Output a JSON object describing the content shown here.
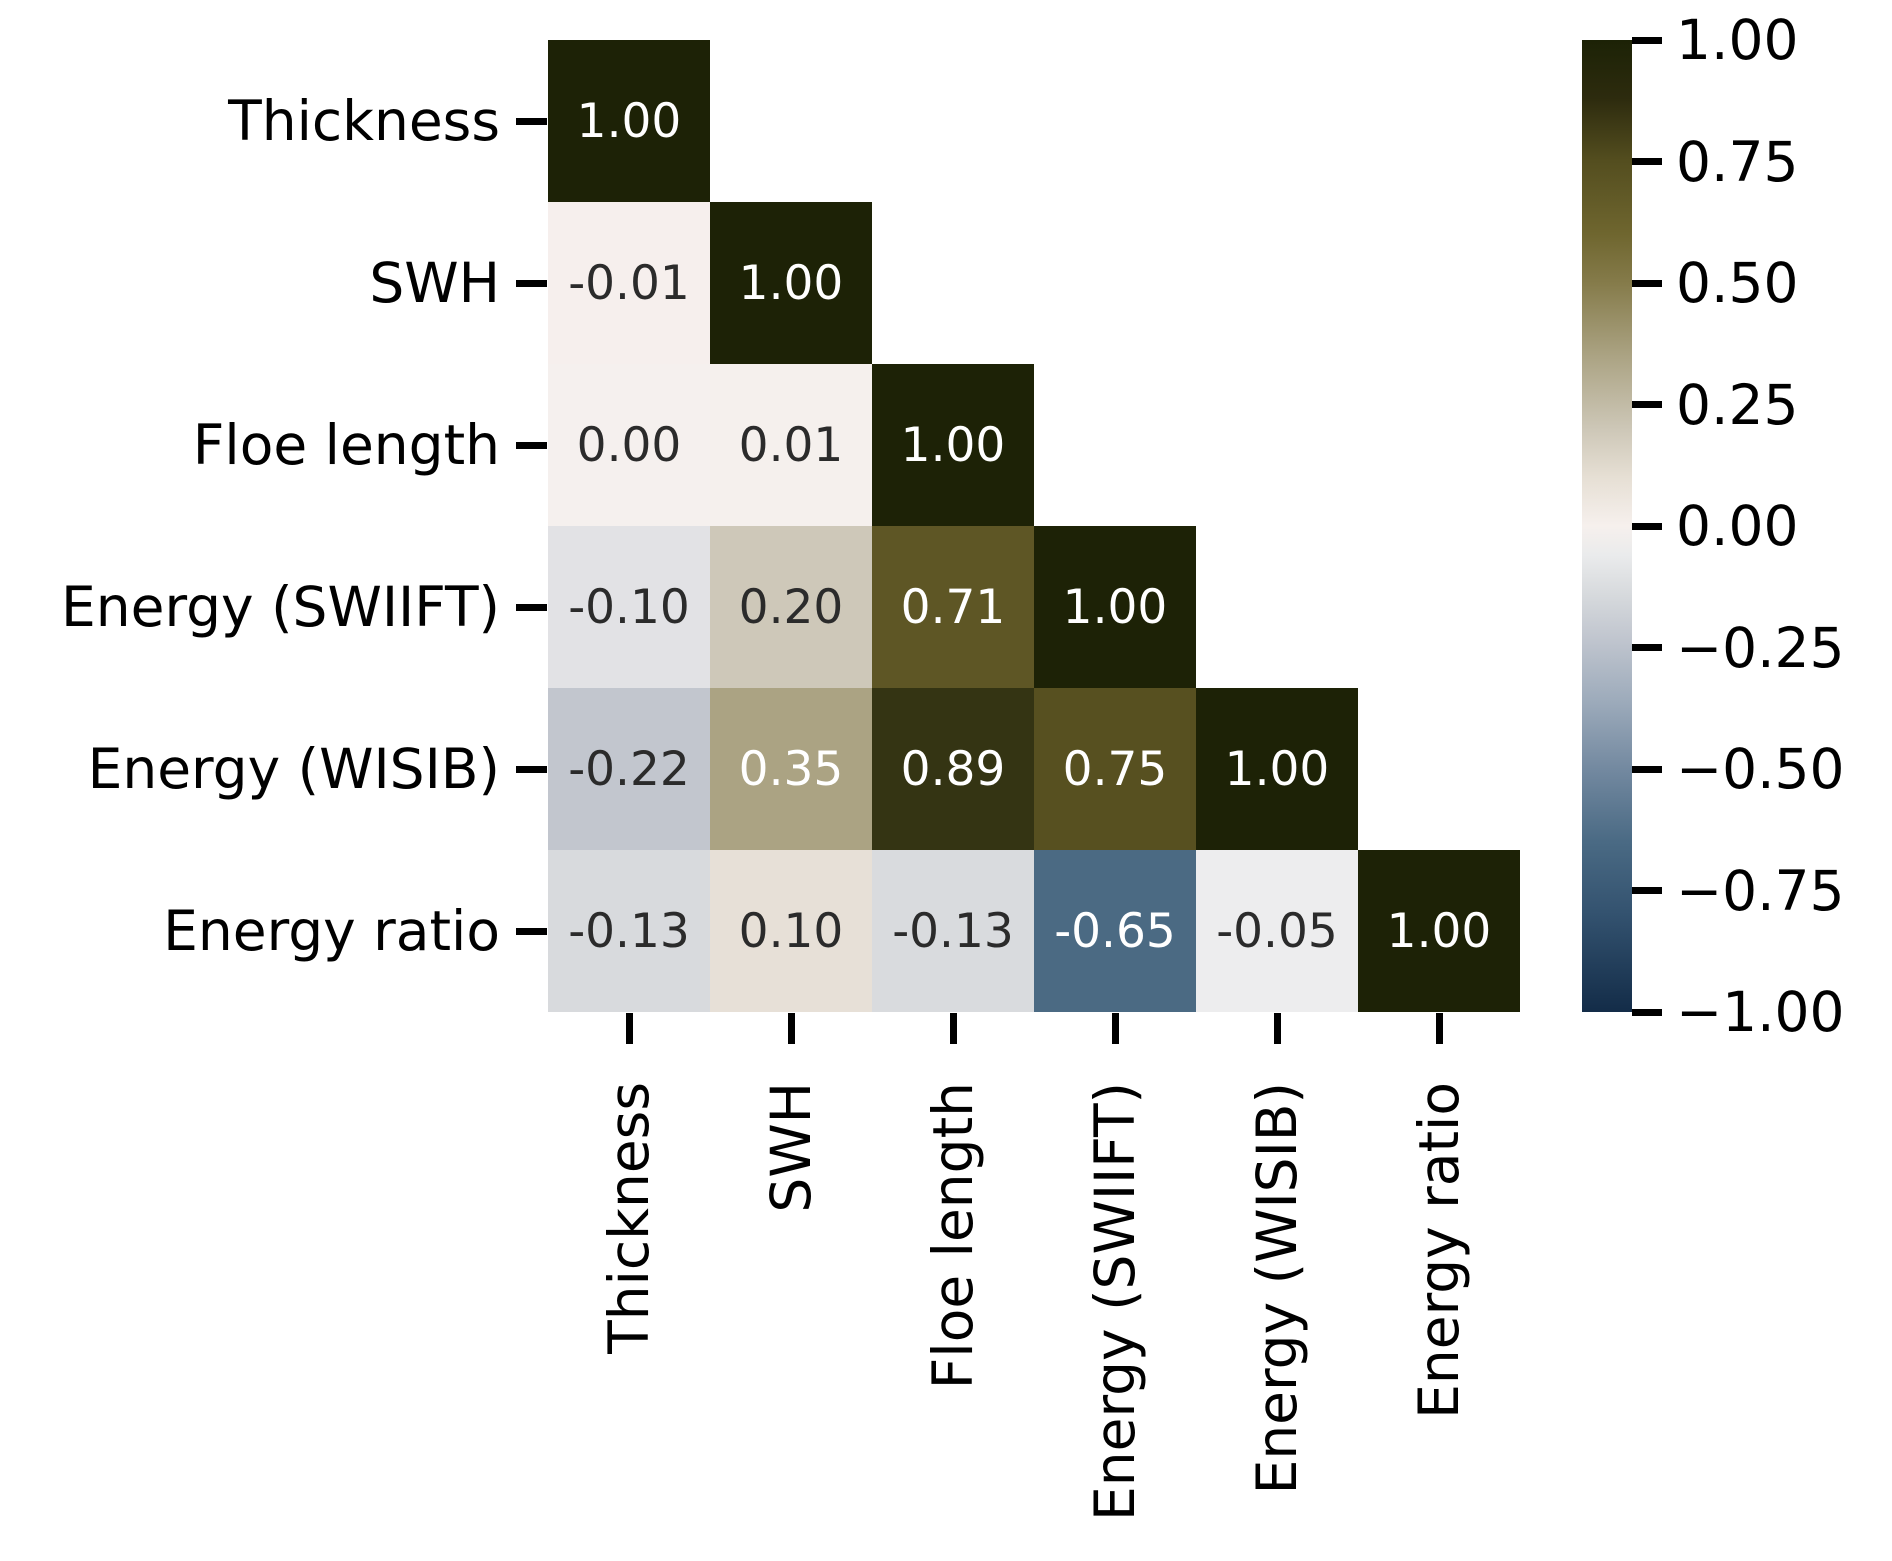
{
  "chart_data": {
    "type": "heatmap",
    "subtype": "correlation-matrix-lower-triangle",
    "title": "",
    "variables": [
      "Thickness",
      "SWH",
      "Floe length",
      "Energy (SWIIFT)",
      "Energy (WISIB)",
      "Energy ratio"
    ],
    "row_labels": [
      "Thickness",
      "SWH",
      "Floe length",
      "Energy (SWIIFT)",
      "Energy (WISIB)",
      "Energy ratio"
    ],
    "col_labels": [
      "Thickness",
      "SWH",
      "Floe length",
      "Energy (SWIIFT)",
      "Energy (WISIB)",
      "Energy ratio"
    ],
    "matrix_lower_triangle": [
      [
        1.0
      ],
      [
        -0.01,
        1.0
      ],
      [
        0.0,
        0.01,
        1.0
      ],
      [
        -0.1,
        0.2,
        0.71,
        1.0
      ],
      [
        -0.22,
        0.35,
        0.89,
        0.75,
        1.0
      ],
      [
        -0.13,
        0.1,
        -0.13,
        -0.65,
        -0.05,
        1.0
      ]
    ],
    "cell_labels": [
      [
        "1.00"
      ],
      [
        "-0.01",
        "1.00"
      ],
      [
        "0.00",
        "0.01",
        "1.00"
      ],
      [
        "-0.10",
        "0.20",
        "0.71",
        "1.00"
      ],
      [
        "-0.22",
        "0.35",
        "0.89",
        "0.75",
        "1.00"
      ],
      [
        "-0.13",
        "0.10",
        "-0.13",
        "-0.65",
        "-0.05",
        "1.00"
      ]
    ],
    "cell_colors": [
      [
        "#1d2206"
      ],
      [
        "#f6efed",
        "#1d2206"
      ],
      [
        "#f5f0ee",
        "#f5f0ed",
        "#1d2206"
      ],
      [
        "#e2e2e5",
        "#cec8b9",
        "#5e5625",
        "#1d2206"
      ],
      [
        "#c2c6ce",
        "#aba383",
        "#343413",
        "#575020",
        "#1d2206"
      ],
      [
        "#d8dadd",
        "#e7e0d7",
        "#d9dbde",
        "#4b6a83",
        "#ededee",
        "#1d2206"
      ]
    ],
    "cell_text_colors": [
      [
        "#ffffff"
      ],
      [
        "#2b2b2b",
        "#ffffff"
      ],
      [
        "#2b2b2b",
        "#2b2b2b",
        "#ffffff"
      ],
      [
        "#2b2b2b",
        "#2b2b2b",
        "#ffffff",
        "#ffffff"
      ],
      [
        "#2b2b2b",
        "#ffffff",
        "#ffffff",
        "#ffffff",
        "#ffffff"
      ],
      [
        "#2b2b2b",
        "#2b2b2b",
        "#2b2b2b",
        "#ffffff",
        "#2b2b2b",
        "#ffffff"
      ]
    ],
    "colorbar": {
      "vmin": -1.0,
      "vmax": 1.0,
      "tick_values": [
        1.0,
        0.75,
        0.5,
        0.25,
        0.0,
        -0.25,
        -0.5,
        -0.75,
        -1.0
      ],
      "tick_labels": [
        "1.00",
        "0.75",
        "0.50",
        "0.25",
        "0.00",
        "−0.25",
        "−0.50",
        "−0.75",
        "−1.00"
      ],
      "gradient": [
        {
          "pos": 0,
          "color": "#1c2206"
        },
        {
          "pos": 6,
          "color": "#2d2b0e"
        },
        {
          "pos": 12.5,
          "color": "#544e1f"
        },
        {
          "pos": 20,
          "color": "#6f662f"
        },
        {
          "pos": 25,
          "color": "#857b4a"
        },
        {
          "pos": 32.5,
          "color": "#aba383"
        },
        {
          "pos": 40,
          "color": "#cdc7b7"
        },
        {
          "pos": 45,
          "color": "#e6dfd4"
        },
        {
          "pos": 50,
          "color": "#f6f0ed"
        },
        {
          "pos": 53,
          "color": "#eaebec"
        },
        {
          "pos": 57,
          "color": "#d7dadd"
        },
        {
          "pos": 61.5,
          "color": "#c1c6cf"
        },
        {
          "pos": 68,
          "color": "#9dabbb"
        },
        {
          "pos": 75,
          "color": "#7389a0"
        },
        {
          "pos": 82.5,
          "color": "#4a6a84"
        },
        {
          "pos": 90,
          "color": "#33526f"
        },
        {
          "pos": 100,
          "color": "#132c48"
        }
      ]
    },
    "colors": {
      "background": "#ffffff",
      "axis_text": "#000000",
      "annotation_dark": "#2b2b2b",
      "annotation_light": "#ffffff",
      "tick_mark": "#000000"
    },
    "layout_hints": {
      "grid": false,
      "legend_position": "right-colorbar",
      "x_tick_rotation_deg": 90
    }
  }
}
